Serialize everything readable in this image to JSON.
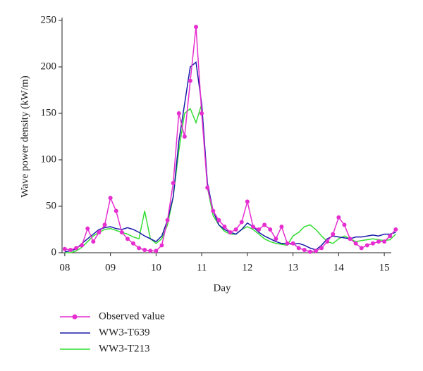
{
  "chart_data": {
    "type": "line",
    "xlabel": "Day",
    "ylabel": "Wave power density (kW/m)",
    "x": [
      8.0,
      8.125,
      8.25,
      8.375,
      8.5,
      8.625,
      8.75,
      8.875,
      9.0,
      9.125,
      9.25,
      9.375,
      9.5,
      9.625,
      9.75,
      9.875,
      10.0,
      10.125,
      10.25,
      10.375,
      10.5,
      10.625,
      10.75,
      10.875,
      11.0,
      11.125,
      11.25,
      11.375,
      11.5,
      11.625,
      11.75,
      11.875,
      12.0,
      12.125,
      12.25,
      12.375,
      12.5,
      12.625,
      12.75,
      12.875,
      13.0,
      13.125,
      13.25,
      13.375,
      13.5,
      13.625,
      13.75,
      13.875,
      14.0,
      14.125,
      14.25,
      14.375,
      14.5,
      14.625,
      14.75,
      14.875,
      15.0,
      15.125,
      15.25
    ],
    "series": [
      {
        "name": "Observed value",
        "color": "#e62ed0",
        "marker": true,
        "values": [
          4,
          3,
          5,
          8,
          26,
          12,
          22,
          30,
          59,
          45,
          22,
          15,
          10,
          5,
          3,
          2,
          2,
          8,
          35,
          75,
          150,
          125,
          185,
          243,
          150,
          70,
          45,
          35,
          28,
          22,
          25,
          33,
          55,
          28,
          25,
          30,
          25,
          15,
          28,
          10,
          10,
          5,
          3,
          1,
          2,
          5,
          12,
          20,
          38,
          30,
          15,
          10,
          5,
          8,
          10,
          12,
          12,
          18,
          25
        ]
      },
      {
        "name": "WW3-T639",
        "color": "#1a1aa8",
        "marker": false,
        "values": [
          1,
          2,
          4,
          10,
          15,
          20,
          25,
          27,
          28,
          26,
          25,
          27,
          25,
          22,
          18,
          15,
          12,
          18,
          35,
          60,
          120,
          160,
          200,
          205,
          160,
          75,
          45,
          30,
          25,
          22,
          20,
          25,
          32,
          28,
          22,
          18,
          15,
          12,
          10,
          10,
          9,
          10,
          8,
          5,
          3,
          8,
          15,
          18,
          17,
          16,
          15,
          17,
          17,
          18,
          19,
          18,
          20,
          20,
          22
        ]
      },
      {
        "name": "WW3-T213",
        "color": "#33dd33",
        "marker": false,
        "values": [
          0,
          0,
          2,
          6,
          12,
          18,
          22,
          25,
          26,
          24,
          22,
          20,
          17,
          15,
          45,
          15,
          10,
          15,
          30,
          60,
          110,
          150,
          155,
          140,
          160,
          70,
          40,
          30,
          23,
          20,
          20,
          25,
          28,
          25,
          20,
          15,
          12,
          10,
          9,
          8,
          18,
          22,
          28,
          30,
          25,
          18,
          12,
          10,
          15,
          18,
          15,
          12,
          13,
          14,
          15,
          14,
          13,
          14,
          20
        ]
      }
    ],
    "xlim": [
      7.94,
      15.4
    ],
    "xticks": [
      {
        "value": 8,
        "label": "08"
      },
      {
        "value": 9,
        "label": "09"
      },
      10,
      11,
      12,
      13,
      14,
      15
    ],
    "ylim": [
      0,
      250
    ],
    "yticks": [
      0,
      50,
      100,
      150,
      200,
      250
    ]
  }
}
